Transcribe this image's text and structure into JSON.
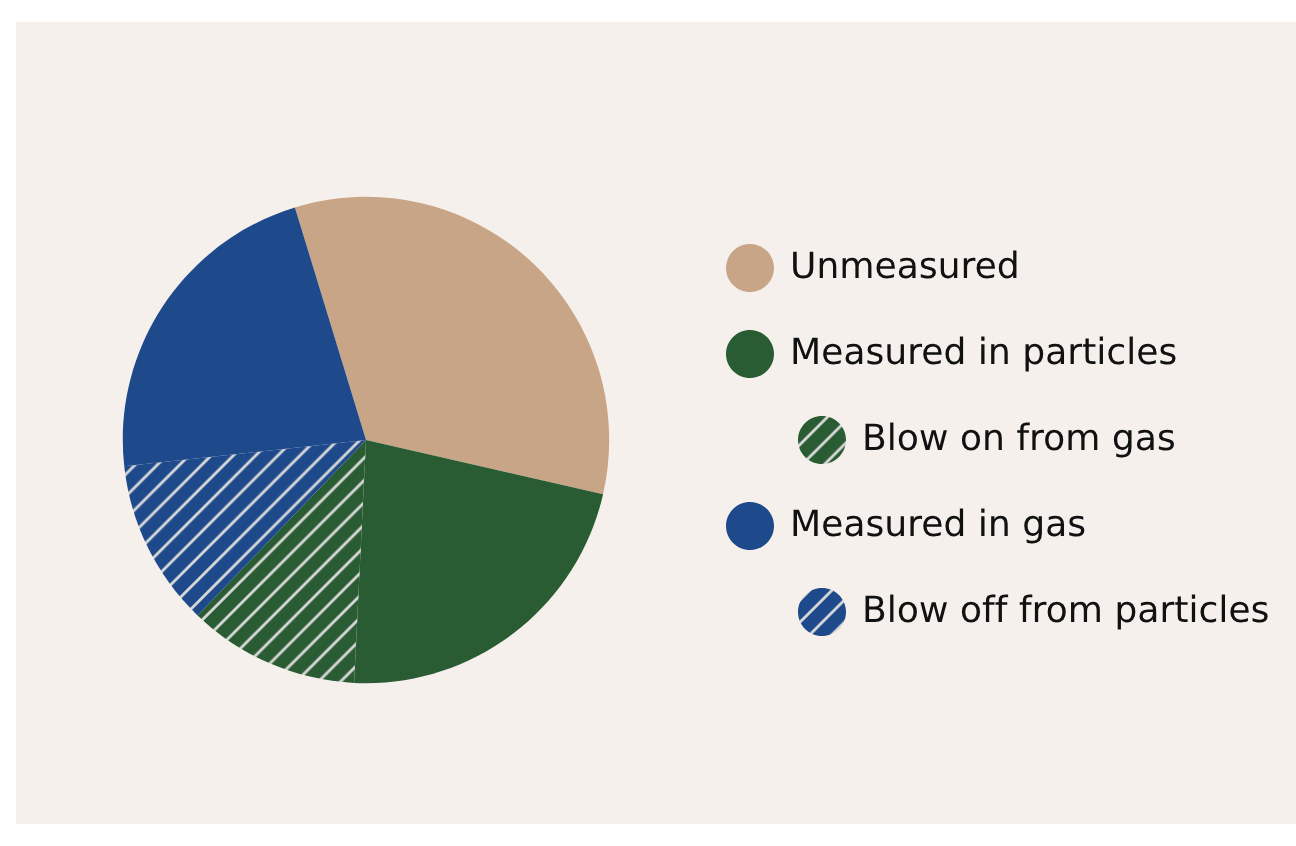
{
  "chart_data": {
    "type": "pie",
    "categories": [
      "Unmeasured",
      "Measured in particles",
      "Blow on from gas",
      "Measured in gas",
      "Blow off from particles"
    ],
    "values": [
      33.3,
      22.2,
      11.4,
      22.0,
      11.1
    ],
    "colors": [
      "#c9a587",
      "#2a5c33",
      "#2a5c33",
      "#1e4a8c",
      "#1e4a8c"
    ],
    "legend": "right"
  }
}
